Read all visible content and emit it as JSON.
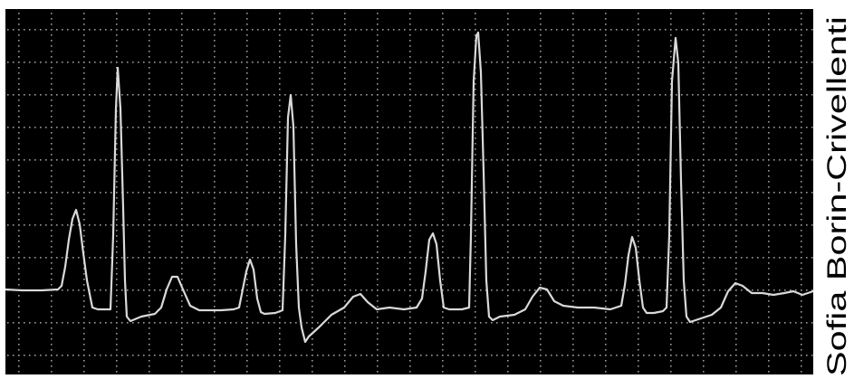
{
  "credit": {
    "text": "Sofia Borin-Crivellenti"
  },
  "trace": {
    "background_color": "#000000",
    "grid_color": "#9a9a9a",
    "line_color": "#d9d9d9"
  }
}
